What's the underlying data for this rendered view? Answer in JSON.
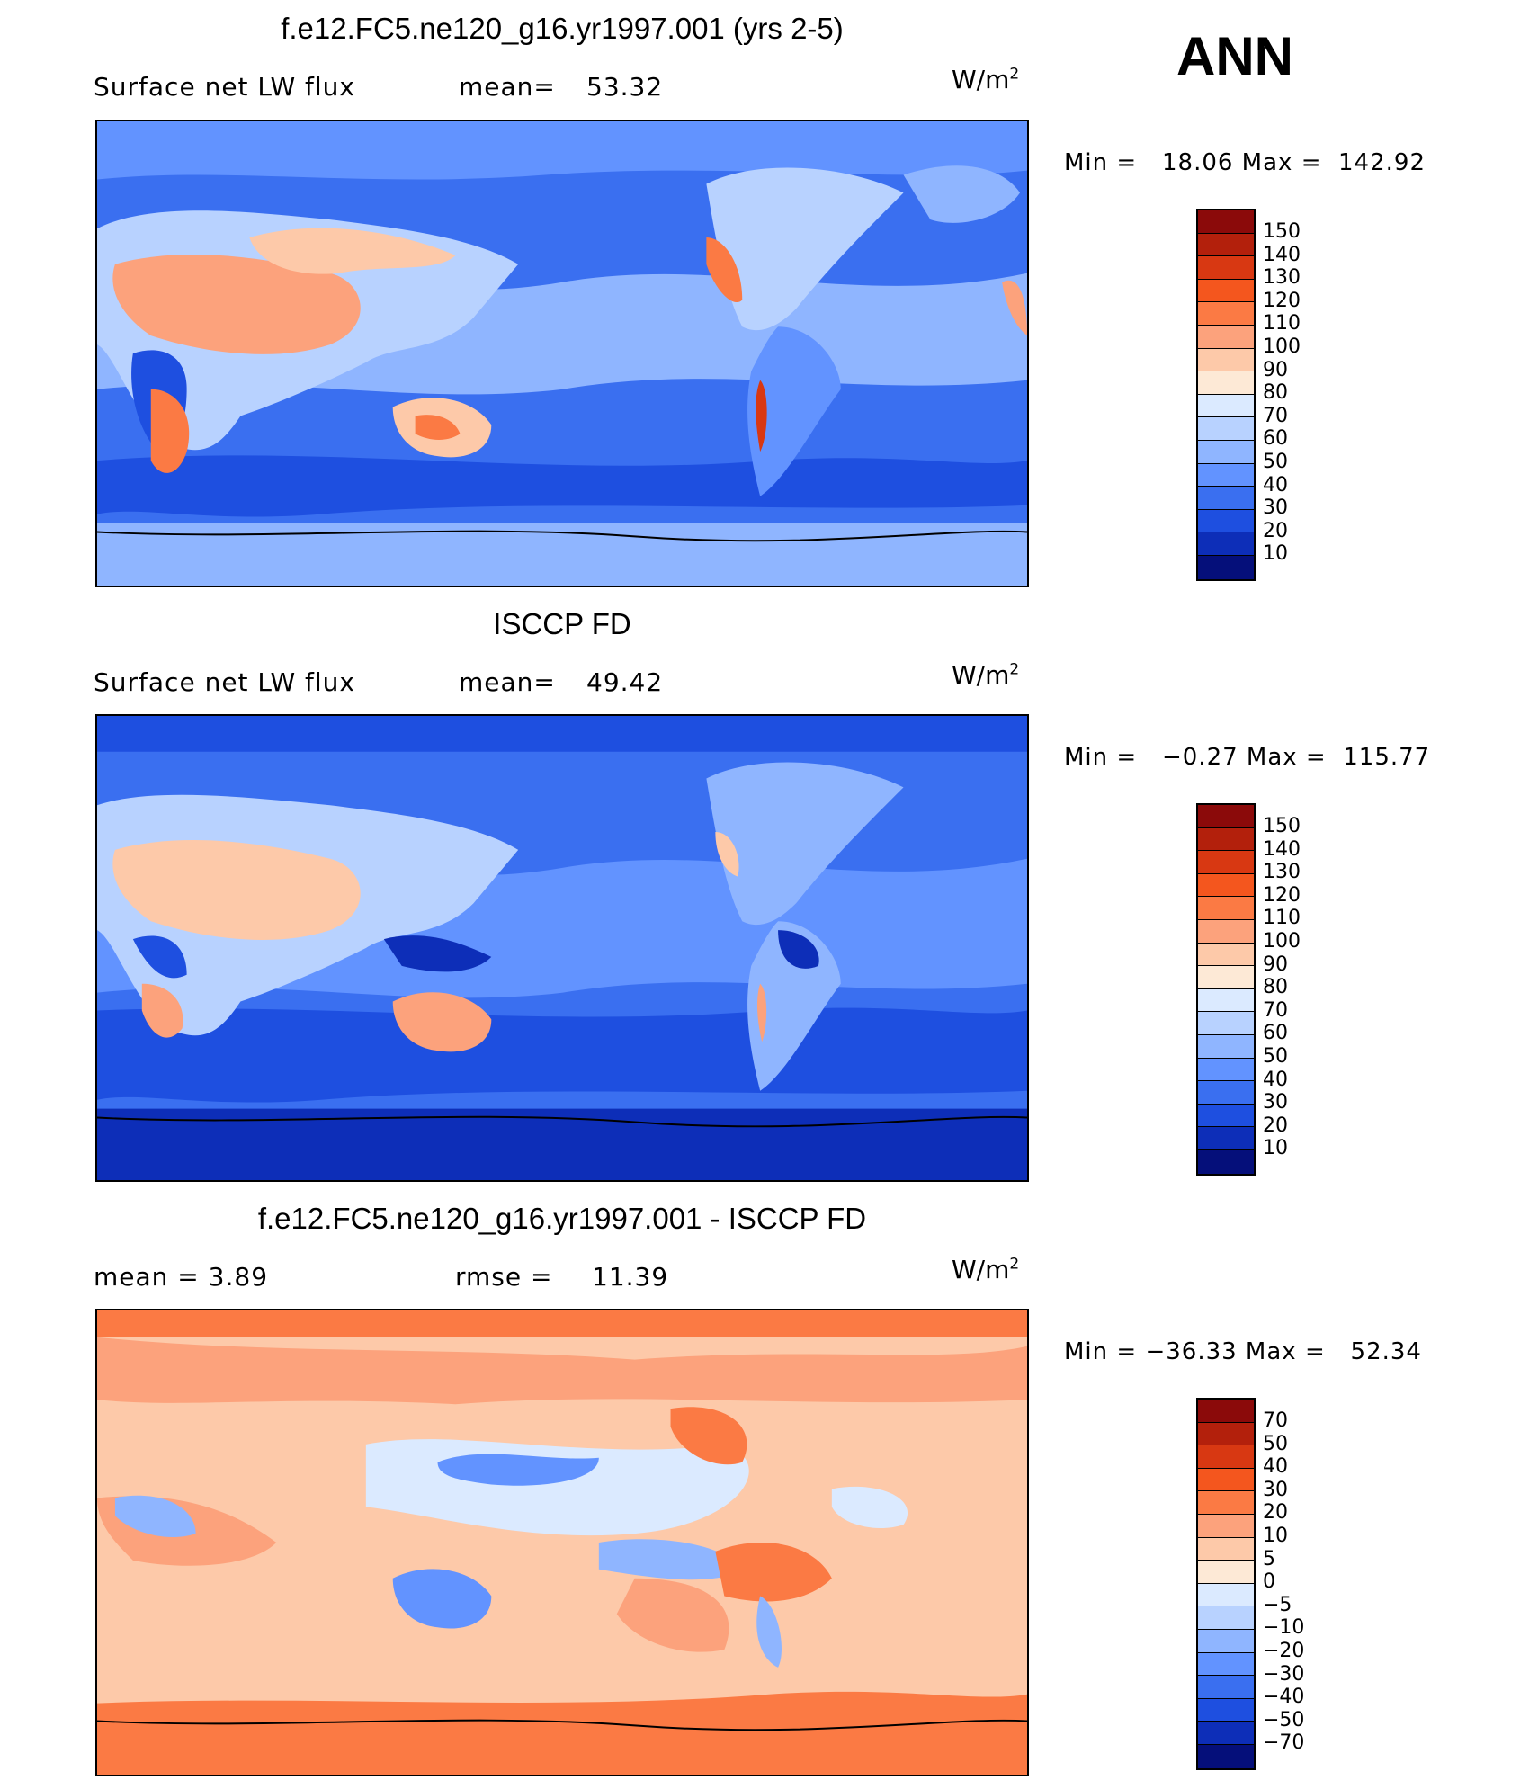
{
  "season": "ANN",
  "panels": [
    {
      "title": "f.e12.FC5.ne120_g16.yr1997.001 (yrs 2-5)",
      "left_text": "Surface net LW flux",
      "mid_label": "mean=",
      "mid_value": "53.32",
      "units_base": "W/m",
      "units_exp": "2",
      "minmax": "Min =   18.06 Max =  142.92",
      "colorbar_labels": [
        "150",
        "140",
        "130",
        "120",
        "110",
        "100",
        "90",
        "80",
        "70",
        "60",
        "50",
        "40",
        "30",
        "20",
        "10"
      ],
      "colorbar_colors": [
        "#8b0a0a",
        "#b3200c",
        "#d83812",
        "#f4561e",
        "#fb7a44",
        "#fca27c",
        "#fdc9a9",
        "#fde9d6",
        "#dbeaff",
        "#b8d2ff",
        "#8fb5ff",
        "#6293ff",
        "#3a6ff0",
        "#1e4fe0",
        "#0d2eb8",
        "#050f7a"
      ]
    },
    {
      "title": "ISCCP FD",
      "left_text": "Surface net LW flux",
      "mid_label": "mean=",
      "mid_value": "49.42",
      "units_base": "W/m",
      "units_exp": "2",
      "minmax": "Min =   −0.27 Max =  115.77",
      "colorbar_labels": [
        "150",
        "140",
        "130",
        "120",
        "110",
        "100",
        "90",
        "80",
        "70",
        "60",
        "50",
        "40",
        "30",
        "20",
        "10"
      ],
      "colorbar_colors": [
        "#8b0a0a",
        "#b3200c",
        "#d83812",
        "#f4561e",
        "#fb7a44",
        "#fca27c",
        "#fdc9a9",
        "#fde9d6",
        "#dbeaff",
        "#b8d2ff",
        "#8fb5ff",
        "#6293ff",
        "#3a6ff0",
        "#1e4fe0",
        "#0d2eb8",
        "#050f7a"
      ]
    },
    {
      "title": "f.e12.FC5.ne120_g16.yr1997.001 - ISCCP FD",
      "left_text": "mean =    3.89",
      "mid_label": "rmse =",
      "mid_value": "11.39",
      "units_base": "W/m",
      "units_exp": "2",
      "minmax": "Min = −36.33 Max =   52.34",
      "colorbar_labels": [
        "70",
        "50",
        "40",
        "30",
        "20",
        "10",
        "5",
        "0",
        "−5",
        "−10",
        "−20",
        "−30",
        "−40",
        "−50",
        "−70"
      ],
      "colorbar_colors": [
        "#8b0a0a",
        "#b3200c",
        "#d83812",
        "#f4561e",
        "#fb7a44",
        "#fca27c",
        "#fdc9a9",
        "#fde9d6",
        "#dbeaff",
        "#b8d2ff",
        "#8fb5ff",
        "#6293ff",
        "#3a6ff0",
        "#1e4fe0",
        "#0d2eb8",
        "#050f7a"
      ]
    }
  ],
  "chart_data": [
    {
      "type": "heatmap",
      "title": "f.e12.FC5.ne120_g16.yr1997.001 (yrs 2-5)",
      "subtitle": "Surface net LW flux",
      "units": "W/m2",
      "stats": {
        "mean": 53.32,
        "min": 18.06,
        "max": 142.92
      },
      "levels": [
        10,
        20,
        30,
        40,
        50,
        60,
        70,
        80,
        90,
        100,
        110,
        120,
        130,
        140,
        150
      ]
    },
    {
      "type": "heatmap",
      "title": "ISCCP FD",
      "subtitle": "Surface net LW flux",
      "units": "W/m2",
      "stats": {
        "mean": 49.42,
        "min": -0.27,
        "max": 115.77
      },
      "levels": [
        10,
        20,
        30,
        40,
        50,
        60,
        70,
        80,
        90,
        100,
        110,
        120,
        130,
        140,
        150
      ]
    },
    {
      "type": "heatmap",
      "title": "f.e12.FC5.ne120_g16.yr1997.001 - ISCCP FD",
      "units": "W/m2",
      "stats": {
        "mean": 3.89,
        "rmse": 11.39,
        "min": -36.33,
        "max": 52.34
      },
      "levels": [
        -70,
        -50,
        -40,
        -30,
        -20,
        -10,
        -5,
        0,
        5,
        10,
        20,
        30,
        40,
        50,
        70
      ]
    }
  ]
}
